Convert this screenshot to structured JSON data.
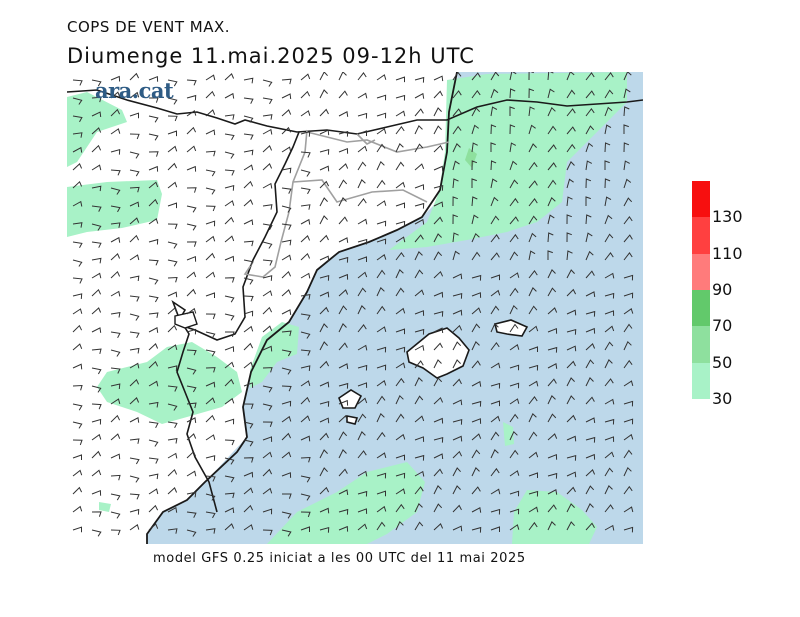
{
  "header": {
    "title": "COPS DE VENT MAX.",
    "subtitle": "Diumenge  11.mai.2025 09-12h UTC"
  },
  "logo_text": "ara.cat",
  "footer": {
    "credit": "model GFS 0.25 iniciat a les 00 UTC del 11 mai 2025"
  },
  "legend": {
    "bands": [
      {
        "from": 30,
        "to": 50,
        "color": "#a8f2c7"
      },
      {
        "from": 50,
        "to": 70,
        "color": "#8ee09e"
      },
      {
        "from": 70,
        "to": 90,
        "color": "#62c96b"
      },
      {
        "from": 90,
        "to": 110,
        "color": "#ff7b7b"
      },
      {
        "from": 110,
        "to": 130,
        "color": "#ff4040"
      },
      {
        "from": 130,
        "to": 150,
        "color": "#f70f0f"
      }
    ],
    "tick_labels": [
      "30",
      "50",
      "70",
      "90",
      "110",
      "130"
    ]
  },
  "colors": {
    "sea": "#bdd8ea",
    "land": "#ffffff",
    "gust_30_50": "#a8f2c7",
    "gust_50_70": "#8ee09e",
    "coast": "#1a1a1a",
    "border": "#9a9a9a",
    "barb": "#333333"
  }
}
